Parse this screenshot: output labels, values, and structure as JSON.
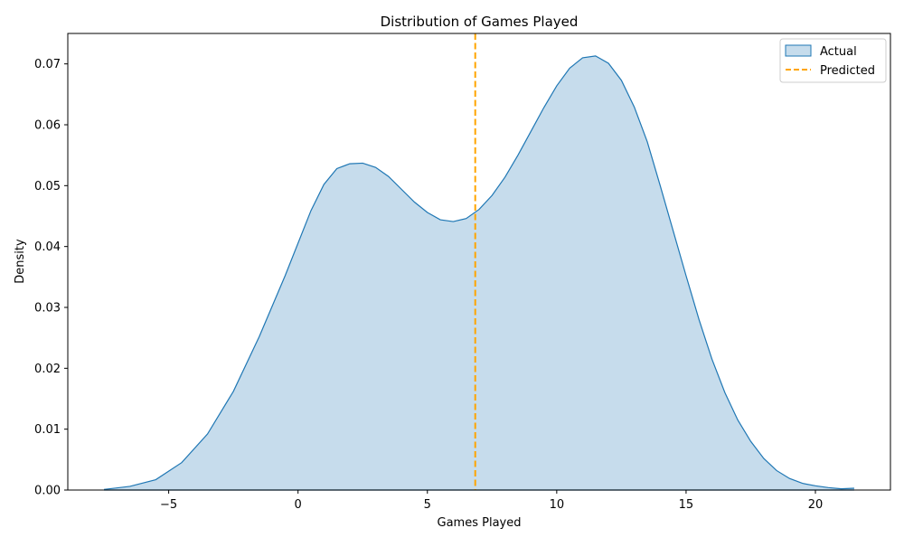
{
  "chart_data": {
    "type": "area",
    "title": "Distribution of Games Played",
    "xlabel": "Games Played",
    "ylabel": "Density",
    "xlim": [
      -8.9,
      22.9
    ],
    "ylim": [
      0,
      0.075
    ],
    "xticks": [
      -5,
      0,
      5,
      10,
      15,
      20
    ],
    "yticks": [
      0.0,
      0.01,
      0.02,
      0.03,
      0.04,
      0.05,
      0.06,
      0.07
    ],
    "ytick_labels": [
      "0.00",
      "0.01",
      "0.02",
      "0.03",
      "0.04",
      "0.05",
      "0.06",
      "0.07"
    ],
    "grid": false,
    "legend": {
      "placement": "top-right"
    },
    "series": [
      {
        "name": "Actual",
        "kind": "kde-area",
        "color": "#1f77b4",
        "fill_color": "#c6dcec",
        "x": [
          -7.5,
          -6.5,
          -5.5,
          -4.5,
          -3.5,
          -2.5,
          -1.5,
          -0.5,
          0.5,
          1.0,
          1.5,
          2.0,
          2.5,
          3.0,
          3.5,
          4.0,
          4.5,
          5.0,
          5.5,
          6.0,
          6.5,
          7.0,
          7.5,
          8.0,
          8.5,
          9.0,
          9.5,
          10.0,
          10.5,
          11.0,
          11.5,
          12.0,
          12.5,
          13.0,
          13.5,
          14.0,
          14.5,
          15.0,
          15.5,
          16.0,
          16.5,
          17.0,
          17.5,
          18.0,
          18.5,
          19.0,
          19.5,
          20.0,
          20.5,
          21.0,
          21.5
        ],
        "y": [
          0.0001,
          0.0006,
          0.0017,
          0.0045,
          0.0092,
          0.0162,
          0.0252,
          0.0352,
          0.0459,
          0.0502,
          0.0528,
          0.0536,
          0.0537,
          0.053,
          0.0515,
          0.0494,
          0.0473,
          0.0456,
          0.0444,
          0.0441,
          0.0446,
          0.0461,
          0.0484,
          0.0514,
          0.055,
          0.0589,
          0.0628,
          0.0664,
          0.0693,
          0.071,
          0.0713,
          0.0701,
          0.0673,
          0.0629,
          0.0572,
          0.05,
          0.0426,
          0.0352,
          0.028,
          0.0215,
          0.016,
          0.0115,
          0.008,
          0.0052,
          0.0032,
          0.0019,
          0.0011,
          0.0007,
          0.0004,
          0.0002,
          0.0003
        ]
      },
      {
        "name": "Predicted",
        "kind": "vline",
        "color": "#ffa500",
        "x": 6.85
      }
    ]
  }
}
